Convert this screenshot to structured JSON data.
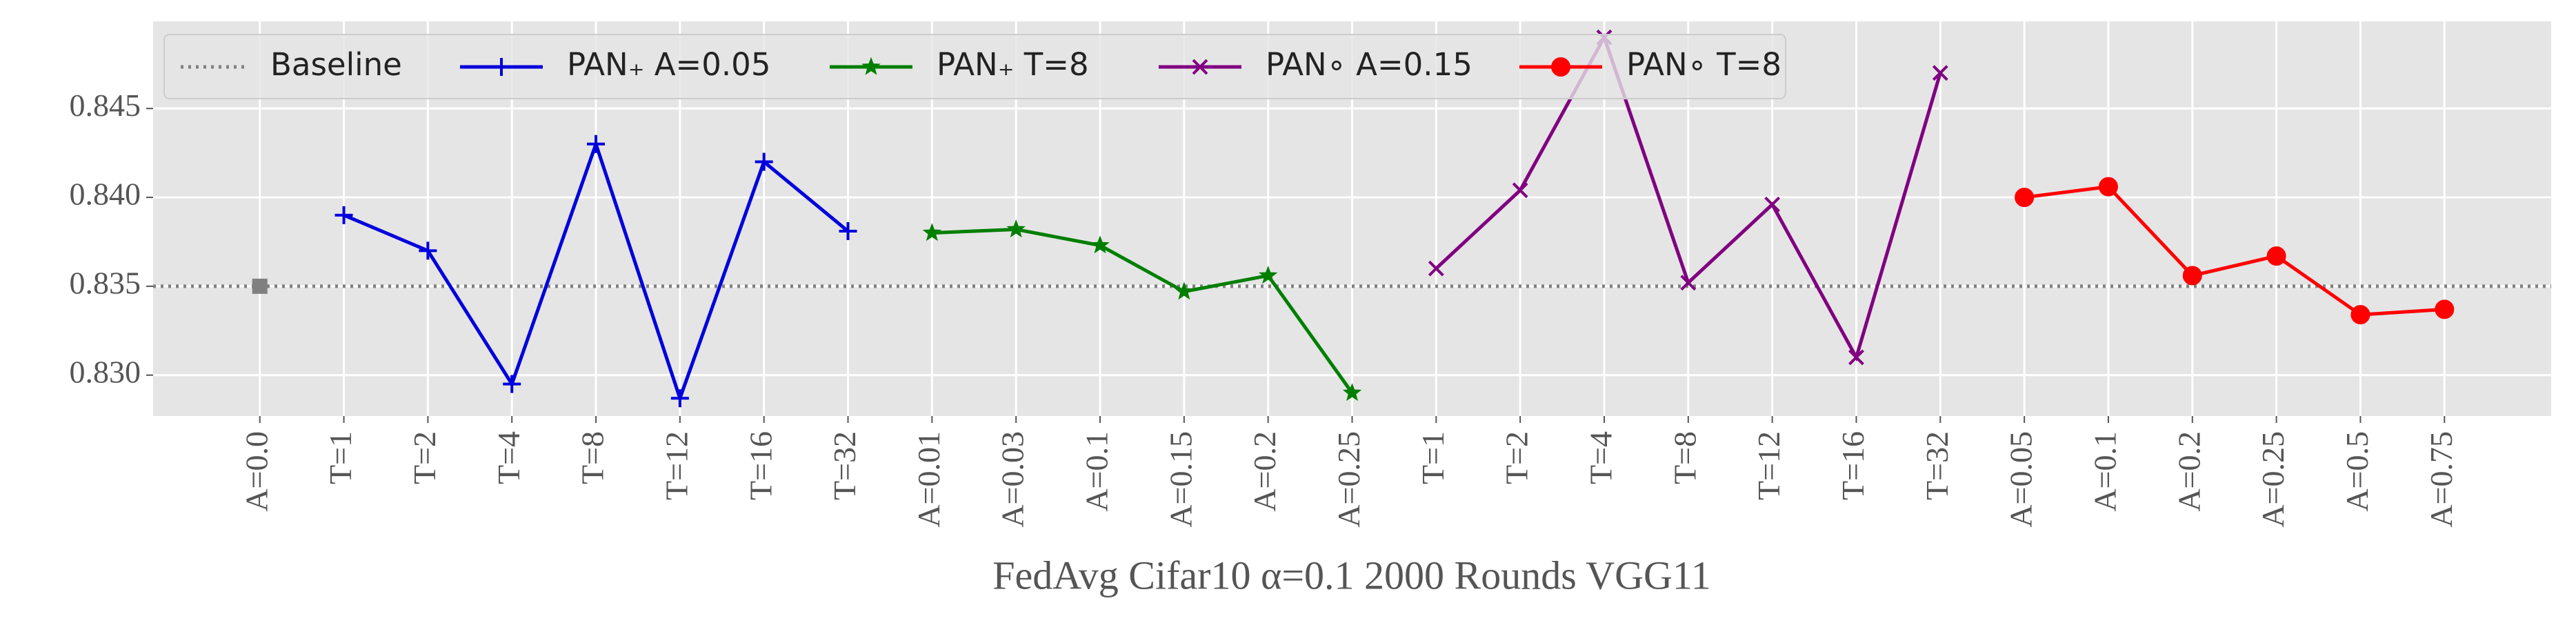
{
  "chart_data": {
    "type": "line",
    "xlabel": "FedAvg Cifar10 α=0.1 2000 Rounds VGG11",
    "categories": [
      "A=0.0",
      "T=1",
      "T=2",
      "T=4",
      "T=8",
      "T=12",
      "T=16",
      "T=32",
      "A=0.01",
      "A=0.03",
      "A=0.1",
      "A=0.15",
      "A=0.2",
      "A=0.25",
      "T=1",
      "T=2",
      "T=4",
      "T=8",
      "T=12",
      "T=16",
      "T=32",
      "A=0.05",
      "A=0.1",
      "A=0.2",
      "A=0.25",
      "A=0.5",
      "A=0.75"
    ],
    "series": [
      {
        "name": "Baseline",
        "color": "#808080",
        "style": "dotted",
        "marker": "square",
        "values": [
          0.835,
          null,
          null,
          null,
          null,
          null,
          null,
          null,
          null,
          null,
          null,
          null,
          null,
          null,
          null,
          null,
          null,
          null,
          null,
          null,
          null,
          null,
          null,
          null,
          null,
          null,
          null
        ]
      },
      {
        "name": "PAN₊ A=0.05",
        "color": "#0000dd",
        "marker": "plus",
        "values": [
          null,
          0.839,
          0.837,
          0.8295,
          0.843,
          0.8287,
          0.842,
          0.8381,
          null,
          null,
          null,
          null,
          null,
          null,
          null,
          null,
          null,
          null,
          null,
          null,
          null,
          null,
          null,
          null,
          null,
          null,
          null
        ]
      },
      {
        "name": "PAN₊ T=8",
        "color": "#007f00",
        "marker": "star",
        "values": [
          null,
          null,
          null,
          null,
          null,
          null,
          null,
          null,
          0.838,
          0.8382,
          0.8373,
          0.8347,
          0.8356,
          0.829,
          null,
          null,
          null,
          null,
          null,
          null,
          null,
          null,
          null,
          null,
          null,
          null,
          null
        ]
      },
      {
        "name": "PAN∘ A=0.15",
        "color": "#800080",
        "marker": "x",
        "values": [
          null,
          null,
          null,
          null,
          null,
          null,
          null,
          null,
          null,
          null,
          null,
          null,
          null,
          null,
          0.836,
          0.8404,
          0.849,
          0.8352,
          0.8396,
          0.831,
          0.847,
          null,
          null,
          null,
          null,
          null,
          null
        ]
      },
      {
        "name": "PAN∘ T=8",
        "color": "#ff0000",
        "marker": "circle",
        "values": [
          null,
          null,
          null,
          null,
          null,
          null,
          null,
          null,
          null,
          null,
          null,
          null,
          null,
          null,
          null,
          null,
          null,
          null,
          null,
          null,
          null,
          0.84,
          0.8406,
          0.8356,
          0.8367,
          0.8334,
          0.8337
        ]
      }
    ],
    "ylim": [
      0.8277,
      0.8499
    ],
    "yticks": [
      {
        "value": 0.83,
        "label": "0.830"
      },
      0.835,
      {
        "value": 0.84,
        "label": "0.840"
      },
      0.845
    ],
    "grid": true,
    "legend": "upper left"
  }
}
